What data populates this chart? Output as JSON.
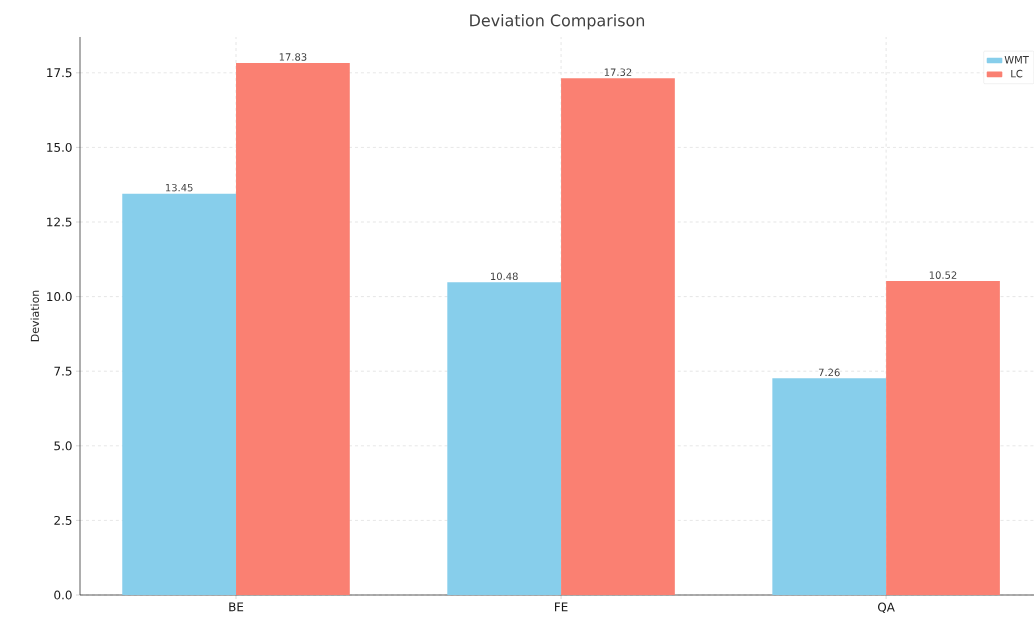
{
  "chart_data": {
    "type": "bar",
    "title": "Deviation Comparison",
    "ylabel": "Deviation",
    "categories": [
      "BE",
      "FE",
      "QA"
    ],
    "series": [
      {
        "name": "WMT",
        "color": "#87ceeb",
        "values": [
          13.45,
          10.48,
          7.26
        ]
      },
      {
        "name": "LC",
        "color": "#fa8072",
        "values": [
          17.83,
          17.32,
          10.52
        ]
      }
    ],
    "ylim": [
      0,
      18.7
    ],
    "yticks": [
      {
        "value": 0,
        "label": "0.0"
      },
      2.5,
      {
        "value": 5,
        "label": "5.0"
      },
      7.5,
      {
        "value": 10,
        "label": "10.0"
      },
      12.5,
      {
        "value": 15,
        "label": "15.0"
      },
      17.5
    ],
    "grid": true,
    "legend": "top right",
    "data_labels": true
  }
}
